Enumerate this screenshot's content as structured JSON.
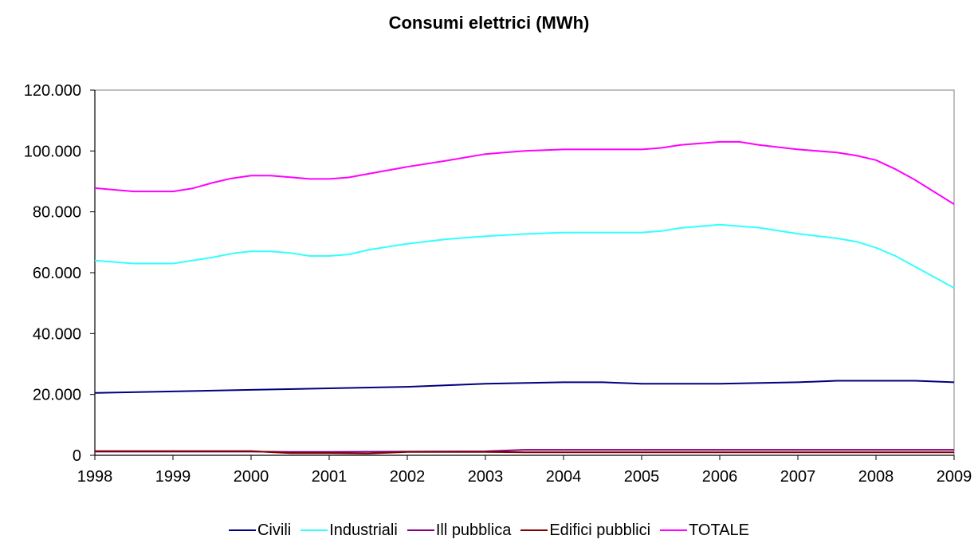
{
  "chart_data": {
    "type": "line",
    "title": "Consumi elettrici (MWh)",
    "xlabel": "",
    "ylabel": "",
    "x_ticks": [
      "1998",
      "1999",
      "2000",
      "2001",
      "2002",
      "2003",
      "2004",
      "2005",
      "2006",
      "2007",
      "2008",
      "2009"
    ],
    "y_ticks": [
      "0",
      "20.000",
      "40.000",
      "60.000",
      "80.000",
      "100.000",
      "120.000"
    ],
    "ylim": [
      0,
      120000
    ],
    "xlim": [
      1998,
      2009
    ],
    "grid": false,
    "legend_position": "bottom",
    "series": [
      {
        "name": "Civili",
        "color": "#000080",
        "points": [
          [
            1998,
            20500
          ],
          [
            1999,
            21000
          ],
          [
            2000,
            21500
          ],
          [
            2001,
            22000
          ],
          [
            2002,
            22500
          ],
          [
            2003,
            23500
          ],
          [
            2004,
            24000
          ],
          [
            2004.5,
            24000
          ],
          [
            2005,
            23500
          ],
          [
            2006,
            23500
          ],
          [
            2007,
            24000
          ],
          [
            2007.5,
            24500
          ],
          [
            2008,
            24500
          ],
          [
            2008.5,
            24500
          ],
          [
            2009,
            24000
          ]
        ]
      },
      {
        "name": "Industriali",
        "color": "#33FFFF",
        "points": [
          [
            1998,
            64000
          ],
          [
            1998.5,
            63000
          ],
          [
            1999,
            63000
          ],
          [
            1999.5,
            65000
          ],
          [
            1999.8,
            66500
          ],
          [
            2000,
            67000
          ],
          [
            2000.25,
            67000
          ],
          [
            2000.5,
            66500
          ],
          [
            2000.75,
            65500
          ],
          [
            2001,
            65500
          ],
          [
            2001.25,
            66000
          ],
          [
            2001.5,
            67500
          ],
          [
            2002,
            69500
          ],
          [
            2002.5,
            71000
          ],
          [
            2003,
            72000
          ],
          [
            2003.5,
            72700
          ],
          [
            2004,
            73200
          ],
          [
            2004.5,
            73200
          ],
          [
            2005,
            73200
          ],
          [
            2005.25,
            73700
          ],
          [
            2005.5,
            74700
          ],
          [
            2006,
            75800
          ],
          [
            2006.5,
            74800
          ],
          [
            2007,
            72800
          ],
          [
            2007.5,
            71300
          ],
          [
            2007.75,
            70200
          ],
          [
            2008,
            68200
          ],
          [
            2008.25,
            65500
          ],
          [
            2008.5,
            62000
          ],
          [
            2009,
            55000
          ]
        ]
      },
      {
        "name": "Ill pubblica",
        "color": "#800080",
        "points": [
          [
            1998,
            1200
          ],
          [
            1999,
            1200
          ],
          [
            2000,
            1200
          ],
          [
            2000.5,
            1100
          ],
          [
            2001,
            1100
          ],
          [
            2002,
            1200
          ],
          [
            2003,
            1300
          ],
          [
            2003.5,
            1800
          ],
          [
            2004,
            1800
          ],
          [
            2005,
            1800
          ],
          [
            2006,
            1800
          ],
          [
            2007,
            1800
          ],
          [
            2008,
            1800
          ],
          [
            2009,
            1800
          ]
        ]
      },
      {
        "name": "Edifici pubblici",
        "color": "#800000",
        "points": [
          [
            1998,
            1400
          ],
          [
            1999,
            1400
          ],
          [
            2000,
            1400
          ],
          [
            2000.5,
            700
          ],
          [
            2001,
            700
          ],
          [
            2001.5,
            600
          ],
          [
            2002,
            1100
          ],
          [
            2003,
            1100
          ],
          [
            2003.5,
            1000
          ],
          [
            2004,
            1000
          ],
          [
            2005,
            1000
          ],
          [
            2006,
            1000
          ],
          [
            2007,
            1000
          ],
          [
            2008,
            1000
          ],
          [
            2009,
            1000
          ]
        ]
      },
      {
        "name": "TOTALE",
        "color": "#FF00FF",
        "points": [
          [
            1998,
            87800
          ],
          [
            1998.5,
            86700
          ],
          [
            1999,
            86700
          ],
          [
            1999.25,
            87700
          ],
          [
            1999.5,
            89500
          ],
          [
            1999.75,
            91000
          ],
          [
            2000,
            91900
          ],
          [
            2000.25,
            91900
          ],
          [
            2000.5,
            91400
          ],
          [
            2000.75,
            90800
          ],
          [
            2001,
            90800
          ],
          [
            2001.25,
            91300
          ],
          [
            2001.5,
            92500
          ],
          [
            2002,
            94800
          ],
          [
            2002.5,
            96800
          ],
          [
            2003,
            99000
          ],
          [
            2003.5,
            100000
          ],
          [
            2004,
            100500
          ],
          [
            2004.5,
            100500
          ],
          [
            2005,
            100500
          ],
          [
            2005.25,
            101000
          ],
          [
            2005.5,
            102000
          ],
          [
            2006,
            103000
          ],
          [
            2006.25,
            103000
          ],
          [
            2006.5,
            102000
          ],
          [
            2007,
            100500
          ],
          [
            2007.5,
            99500
          ],
          [
            2007.75,
            98500
          ],
          [
            2008,
            97000
          ],
          [
            2008.25,
            94000
          ],
          [
            2008.5,
            90500
          ],
          [
            2009,
            82500
          ]
        ]
      }
    ]
  }
}
